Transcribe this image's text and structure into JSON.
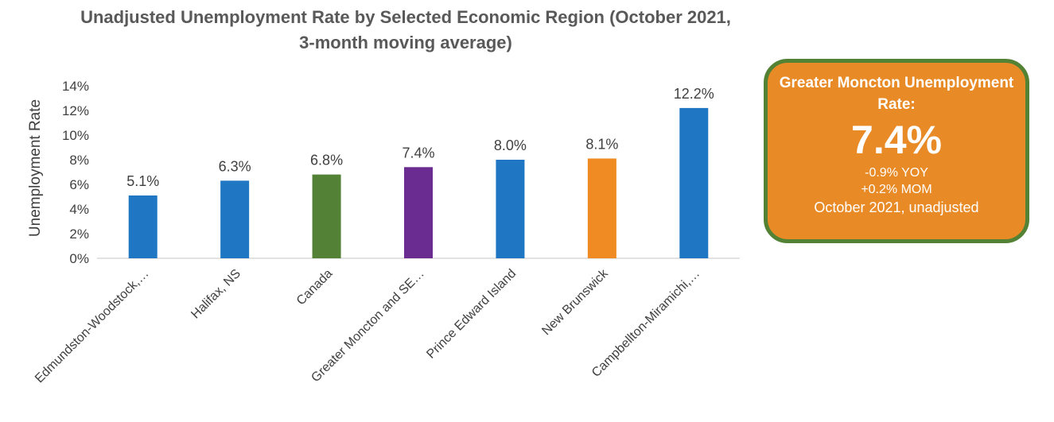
{
  "chart_data": {
    "type": "bar",
    "title": "Unadjusted Unemployment Rate by Selected Economic Region (October 2021, 3-month moving average)",
    "ylabel": "Unemployment Rate",
    "xlabel": "",
    "ylim": [
      0,
      14
    ],
    "yticks": [
      "0%",
      "2%",
      "4%",
      "6%",
      "8%",
      "10%",
      "12%",
      "14%"
    ],
    "categories": [
      "Edmundston-Woodstock,…",
      "Halifax, NS",
      "Canada",
      "Greater Moncton and SE…",
      "Prince Edward Island",
      "New Brunswick",
      "Campbellton-Miramichi,…"
    ],
    "values": [
      5.1,
      6.3,
      6.8,
      7.4,
      8.0,
      8.1,
      12.2
    ],
    "value_labels": [
      "5.1%",
      "6.3%",
      "6.8%",
      "7.4%",
      "8.0%",
      "8.1%",
      "12.2%"
    ],
    "bar_colors": [
      "#1f77c4",
      "#1f77c4",
      "#538135",
      "#6a2c91",
      "#1f77c4",
      "#ef8b22",
      "#1f77c4"
    ],
    "grid": false,
    "legend": "none"
  },
  "callout": {
    "title": "Greater Moncton Unemployment Rate:",
    "value": "7.4%",
    "yoy": "-0.9% YOY",
    "mom": "+0.2% MOM",
    "period": "October 2021, unadjusted",
    "fill_color": "#e88a26",
    "border_color": "#548235"
  }
}
